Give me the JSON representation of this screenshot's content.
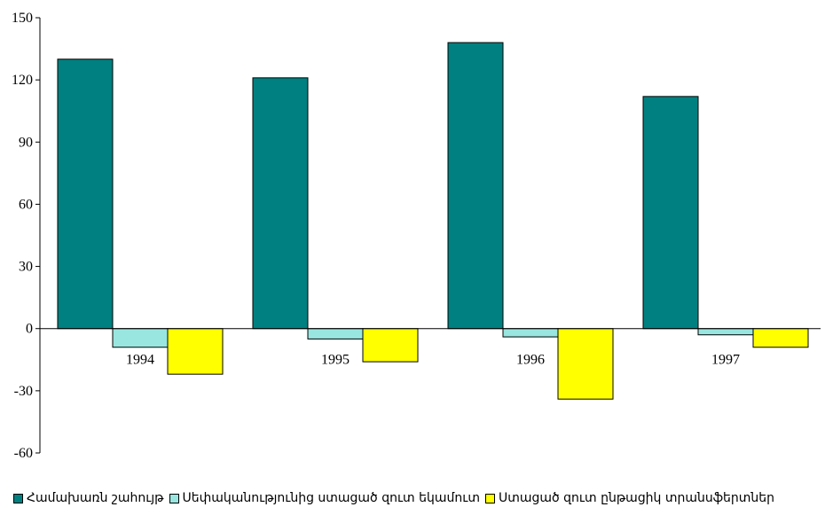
{
  "chart_data": {
    "type": "bar",
    "categories": [
      "1994",
      "1995",
      "1996",
      "1997"
    ],
    "series": [
      {
        "name": "Համախառն շահույթ",
        "color": "#008080",
        "values": [
          130,
          121,
          138,
          112
        ]
      },
      {
        "name": "Սեփականությունից ստացած զուտ եկամուտ",
        "color": "#99e6e0",
        "values": [
          -9,
          -5,
          -4,
          -3
        ]
      },
      {
        "name": "Ստացած զուտ ընթացիկ տրանսֆերտներ",
        "color": "#ffff00",
        "values": [
          -22,
          -16,
          -34,
          -9
        ]
      }
    ],
    "ylim": [
      -60,
      150
    ],
    "yticks": [
      150,
      120,
      90,
      60,
      30,
      0,
      -30,
      -60
    ],
    "grid": false,
    "legend_position": "bottom"
  }
}
